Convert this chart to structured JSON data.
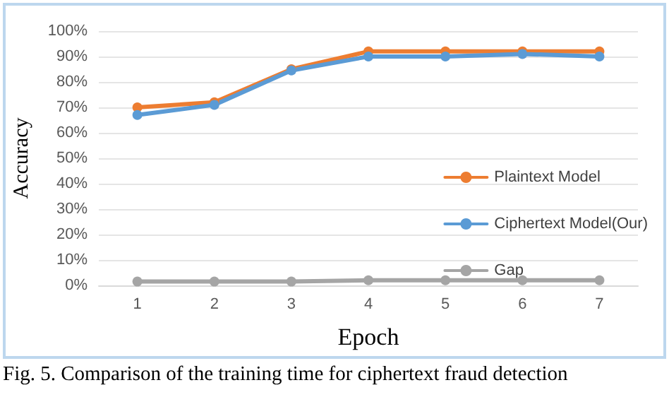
{
  "chart_data": {
    "type": "line",
    "xlabel": "Epoch",
    "ylabel": "Accuracy",
    "categories": [
      "1",
      "2",
      "3",
      "4",
      "5",
      "6",
      "7"
    ],
    "series": [
      {
        "name": "Plaintext Model",
        "color": "#ed7d31",
        "values": [
          70,
          72,
          85,
          92,
          92,
          92,
          92
        ]
      },
      {
        "name": "Ciphertext Model(Our)",
        "color": "#5b9bd5",
        "values": [
          67,
          71,
          84.5,
          90,
          90,
          91,
          90
        ]
      },
      {
        "name": "Gap",
        "color": "#a5a5a5",
        "values": [
          1.5,
          1.5,
          1.5,
          2,
          2,
          2,
          2
        ]
      }
    ],
    "ylim": [
      0,
      100
    ],
    "yticks": [
      {
        "value": 0,
        "label": "0%"
      },
      {
        "value": 10,
        "label": "10%"
      },
      {
        "value": 20,
        "label": "20%"
      },
      {
        "value": 30,
        "label": "30%"
      },
      {
        "value": 40,
        "label": "40%"
      },
      {
        "value": 50,
        "label": "50%"
      },
      {
        "value": 60,
        "label": "60%"
      },
      {
        "value": 70,
        "label": "70%"
      },
      {
        "value": 80,
        "label": "80%"
      },
      {
        "value": 90,
        "label": "90%"
      },
      {
        "value": 100,
        "label": "100%"
      }
    ],
    "grid": "y",
    "legend": "right",
    "marker": "circle",
    "line_style": "solid",
    "annotations": [
      "Fig. 5. Comparison of the training time for ciphertext fraud detection"
    ]
  }
}
